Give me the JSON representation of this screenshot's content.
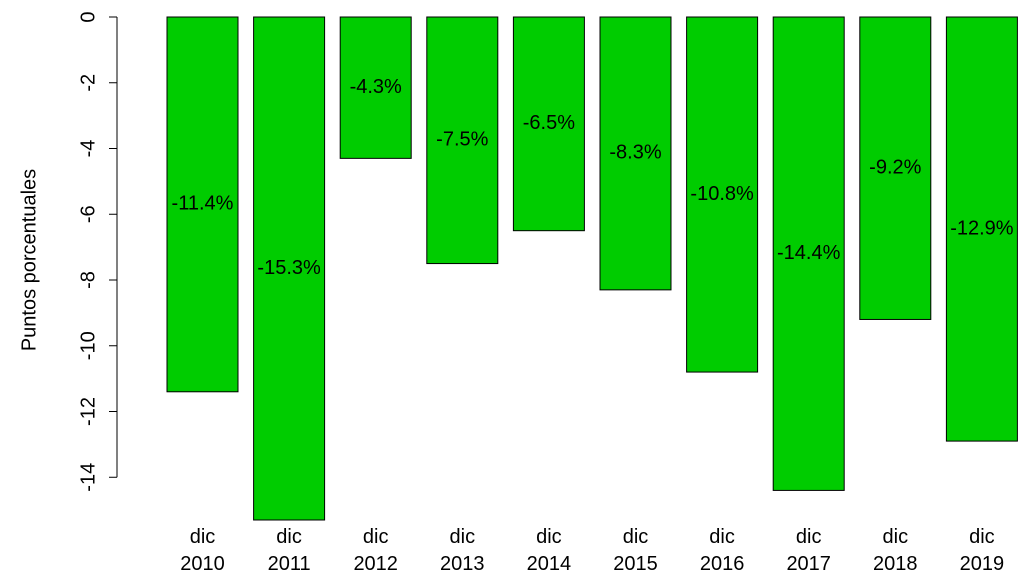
{
  "chart_data": {
    "type": "bar",
    "y_label": "Puntos porcentuales",
    "categories": [
      "dic\n2010",
      "dic\n2011",
      "dic\n2012",
      "dic\n2013",
      "dic\n2014",
      "dic\n2015",
      "dic\n2016",
      "dic\n2017",
      "dic\n2018",
      "dic\n2019"
    ],
    "values": [
      -11.4,
      -15.3,
      -4.3,
      -7.5,
      -6.5,
      -8.3,
      -10.8,
      -14.4,
      -9.2,
      -12.9
    ],
    "value_labels": [
      "-11.4%",
      "-15.3%",
      "-4.3%",
      "-7.5%",
      "-6.5%",
      "-8.3%",
      "-10.8%",
      "-14.4%",
      "-9.2%",
      "-12.9%"
    ],
    "color": "#00cc00",
    "ylim": [
      -15.3,
      0
    ],
    "yticks": [
      0,
      -2,
      -4,
      -6,
      -8,
      -10,
      -12,
      -14
    ]
  }
}
